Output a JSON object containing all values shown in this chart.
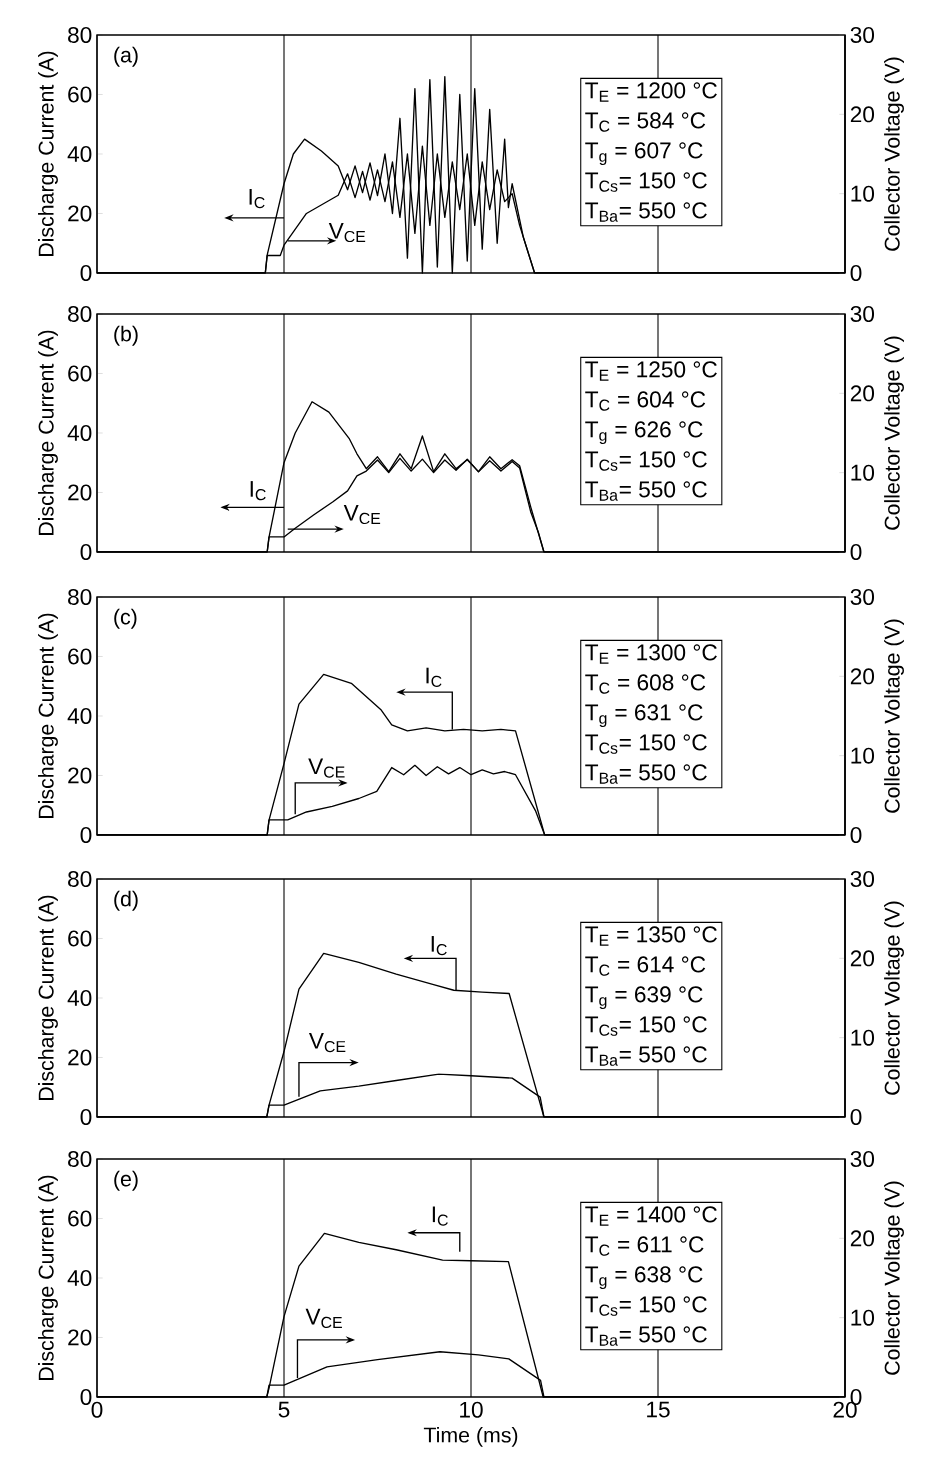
{
  "chart_data": [
    {
      "type": "line",
      "ylabel": "Discharge Current (A)",
      "y2label": "Collector Voltage (V)",
      "xlim": [
        0,
        20
      ],
      "xticks": [
        0,
        5,
        10,
        15,
        20
      ],
      "ylim": [
        0,
        80
      ],
      "yticks": [
        0,
        20,
        40,
        60,
        80
      ],
      "y2lim": [
        0,
        30
      ],
      "y2ticks": [
        0,
        10,
        20,
        30
      ],
      "grid": "x",
      "tick_labels": "y",
      "annotations": [
        "(a)",
        "T$_{E}$ = 1200 °C",
        "T$_{C}$ = 584 °C",
        "T$_{g}$ = 607 °C",
        "T$_{Cs}$= 150 °C",
        "T$_{Ba}$= 550 °C"
      ],
      "series": [
        {
          "name": "I$_{C}$",
          "color": "#000000",
          "x": [
            0,
            4.5,
            4.55,
            5.0,
            5.25,
            5.55,
            6.0,
            6.45,
            6.7,
            6.9,
            7.1,
            7.3,
            7.5,
            7.7,
            7.9,
            8.1,
            8.3,
            8.5,
            8.7,
            8.9,
            9.1,
            9.3,
            9.5,
            9.7,
            9.9,
            10.1,
            10.3,
            10.5,
            10.7,
            10.9,
            11.0,
            11.1,
            11.4,
            11.7,
            20
          ],
          "values": [
            0,
            0,
            6,
            30,
            40,
            45,
            41,
            36,
            28,
            36,
            27,
            37,
            26,
            40,
            20,
            52,
            5,
            62,
            0,
            65,
            2,
            66,
            0,
            60,
            4,
            62,
            8,
            55,
            10,
            45,
            22,
            30,
            12,
            0,
            0
          ]
        },
        {
          "name": "V$_{CE}$",
          "color": "#000000",
          "axis": "y2",
          "x": [
            0,
            4.5,
            4.55,
            4.9,
            5.0,
            5.6,
            6.45,
            6.7,
            6.9,
            7.1,
            7.3,
            7.5,
            7.7,
            7.9,
            8.1,
            8.3,
            8.5,
            8.7,
            8.9,
            9.1,
            9.3,
            9.5,
            9.7,
            9.9,
            10.1,
            10.3,
            10.5,
            10.7,
            10.9,
            11.1,
            11.3,
            11.7,
            20
          ],
          "values": [
            0,
            0,
            2.2,
            2.2,
            3.5,
            7.5,
            9.8,
            12.5,
            9.5,
            12.8,
            9.2,
            13,
            9,
            14,
            7,
            15,
            5,
            16,
            6,
            15,
            7,
            14,
            8,
            15,
            6,
            14,
            8,
            13,
            9,
            10,
            6,
            0,
            0
          ]
        }
      ]
    },
    {
      "type": "line",
      "ylabel": "Discharge Current (A)",
      "y2label": "Collector Voltage (V)",
      "xlim": [
        0,
        20
      ],
      "xticks": [
        0,
        5,
        10,
        15,
        20
      ],
      "ylim": [
        0,
        80
      ],
      "yticks": [
        0,
        20,
        40,
        60,
        80
      ],
      "y2lim": [
        0,
        30
      ],
      "y2ticks": [
        0,
        10,
        20,
        30
      ],
      "grid": "x",
      "tick_labels": "y",
      "annotations": [
        "(b)",
        "T$_{E}$ = 1250 °C",
        "T$_{C}$ = 604 °C",
        "T$_{g}$ = 626 °C",
        "T$_{Cs}$= 150 °C",
        "T$_{Ba}$= 550 °C"
      ],
      "series": [
        {
          "name": "I$_{C}$",
          "color": "#000000",
          "x": [
            0,
            4.55,
            4.6,
            5.0,
            5.3,
            5.75,
            6.2,
            6.75,
            6.95,
            7.2,
            7.5,
            7.8,
            8.1,
            8.4,
            8.7,
            9.0,
            9.3,
            9.6,
            9.9,
            10.2,
            10.5,
            10.8,
            11.1,
            11.3,
            11.6,
            11.95,
            20
          ],
          "values": [
            0,
            0,
            5,
            30,
            40,
            50.5,
            47,
            38,
            33,
            28,
            32,
            27,
            33,
            28,
            39,
            27,
            33,
            28,
            31,
            27,
            32,
            28,
            31,
            29,
            15,
            0,
            0
          ]
        },
        {
          "name": "V$_{CE}$",
          "color": "#000000",
          "axis": "y2",
          "x": [
            0,
            4.55,
            4.6,
            5.0,
            5.3,
            5.8,
            6.3,
            6.7,
            6.95,
            7.2,
            7.5,
            7.8,
            8.1,
            8.4,
            8.7,
            9.0,
            9.3,
            9.6,
            9.9,
            10.2,
            10.5,
            10.8,
            11.1,
            11.3,
            11.6,
            11.8,
            11.95,
            20
          ],
          "values": [
            0,
            0,
            1.9,
            1.9,
            3,
            4.7,
            6.3,
            7.7,
            9.6,
            10.2,
            11.6,
            10,
            11.8,
            10.2,
            11.7,
            10,
            11.6,
            10.3,
            11.7,
            10.1,
            11.5,
            10.2,
            11.4,
            10.6,
            5,
            2.5,
            0,
            0
          ]
        }
      ]
    },
    {
      "type": "line",
      "ylabel": "Discharge Current (A)",
      "y2label": "Collector Voltage (V)",
      "xlim": [
        0,
        20
      ],
      "xticks": [
        0,
        5,
        10,
        15,
        20
      ],
      "ylim": [
        0,
        80
      ],
      "yticks": [
        0,
        20,
        40,
        60,
        80
      ],
      "y2lim": [
        0,
        30
      ],
      "y2ticks": [
        0,
        10,
        20,
        30
      ],
      "grid": "x",
      "tick_labels": "y",
      "annotations": [
        "(c)",
        "T$_{E}$ = 1300 °C",
        "T$_{C}$ = 608 °C",
        "T$_{g}$ = 631 °C",
        "T$_{Cs}$= 150 °C",
        "T$_{Ba}$= 550 °C"
      ],
      "series": [
        {
          "name": "I$_{C}$",
          "color": "#000000",
          "x": [
            0,
            4.55,
            4.6,
            5.0,
            5.4,
            6.06,
            6.8,
            7.6,
            7.88,
            8.3,
            8.8,
            9.3,
            9.8,
            10.3,
            10.8,
            11.19,
            11.97,
            20
          ],
          "values": [
            0,
            0,
            5,
            24,
            44,
            54,
            51,
            42,
            37,
            35,
            36,
            35,
            35.5,
            35,
            35.5,
            35,
            0,
            0
          ]
        },
        {
          "name": "V$_{CE}$",
          "color": "#000000",
          "axis": "y2",
          "x": [
            0,
            4.55,
            4.6,
            5.1,
            5.6,
            6.29,
            7.0,
            7.48,
            7.88,
            8.2,
            8.5,
            8.8,
            9.1,
            9.4,
            9.7,
            10.0,
            10.3,
            10.6,
            10.9,
            11.19,
            11.73,
            11.97,
            20
          ],
          "values": [
            0,
            0,
            1.9,
            1.9,
            2.9,
            3.6,
            4.6,
            5.5,
            8.5,
            7.6,
            8.8,
            7.5,
            8.6,
            7.7,
            8.5,
            7.6,
            8.2,
            7.7,
            8.0,
            7.6,
            3,
            0,
            0
          ]
        }
      ]
    },
    {
      "type": "line",
      "ylabel": "Discharge Current (A)",
      "y2label": "Collector Voltage (V)",
      "xlim": [
        0,
        20
      ],
      "xticks": [
        0,
        5,
        10,
        15,
        20
      ],
      "ylim": [
        0,
        80
      ],
      "yticks": [
        0,
        20,
        40,
        60,
        80
      ],
      "y2lim": [
        0,
        30
      ],
      "y2ticks": [
        0,
        10,
        20,
        30
      ],
      "grid": "x",
      "tick_labels": "y",
      "annotations": [
        "(d)",
        "T$_{E}$ = 1350 °C",
        "T$_{C}$ = 614 °C",
        "T$_{g}$ = 639 °C",
        "T$_{Cs}$= 150 °C",
        "T$_{Ba}$= 550 °C"
      ],
      "series": [
        {
          "name": "I$_{C}$",
          "color": "#000000",
          "x": [
            0,
            4.54,
            4.6,
            5.0,
            5.4,
            6.06,
            7.0,
            8.0,
            9.0,
            9.54,
            10.3,
            11.02,
            11.95,
            20
          ],
          "values": [
            0,
            0,
            4,
            22,
            43,
            55,
            52,
            48,
            44.5,
            42.6,
            42,
            41.5,
            0,
            0
          ]
        },
        {
          "name": "V$_{CE}$",
          "color": "#000000",
          "axis": "y2",
          "x": [
            0,
            4.54,
            4.6,
            5.0,
            5.97,
            7.0,
            8.0,
            9.14,
            10.0,
            11.1,
            11.85,
            11.95,
            20
          ],
          "values": [
            0,
            0,
            1.5,
            1.5,
            3.3,
            3.9,
            4.6,
            5.4,
            5.2,
            4.9,
            2.5,
            0,
            0
          ]
        }
      ]
    },
    {
      "type": "line",
      "xlabel": "Time (ms)",
      "ylabel": "Discharge Current (A)",
      "y2label": "Collector Voltage (V)",
      "xlim": [
        0,
        20
      ],
      "xticks": [
        0,
        5,
        10,
        15,
        20
      ],
      "ylim": [
        0,
        80
      ],
      "yticks": [
        0,
        20,
        40,
        60,
        80
      ],
      "y2lim": [
        0,
        30
      ],
      "y2ticks": [
        0,
        10,
        20,
        30
      ],
      "grid": "x",
      "annotations": [
        "(e)",
        "T$_{E}$ = 1400 °C",
        "T$_{C}$ = 611 °C",
        "T$_{g}$ = 638 °C",
        "T$_{Cs}$= 150 °C",
        "T$_{Ba}$= 550 °C"
      ],
      "series": [
        {
          "name": "I$_{C}$",
          "color": "#000000",
          "x": [
            0,
            4.54,
            4.6,
            5.0,
            5.4,
            6.08,
            7.0,
            8.0,
            9.24,
            10.0,
            11.0,
            11.93,
            20
          ],
          "values": [
            0,
            0,
            3,
            27,
            44,
            55,
            52,
            49.5,
            46,
            45.8,
            45.5,
            0,
            0
          ]
        },
        {
          "name": "V$_{CE}$",
          "color": "#000000",
          "axis": "y2",
          "x": [
            0,
            4.54,
            4.6,
            5.0,
            6.15,
            7.5,
            9.17,
            10.2,
            11.01,
            11.86,
            11.95,
            20
          ],
          "values": [
            0,
            0,
            1.5,
            1.5,
            3.8,
            4.7,
            5.7,
            5.3,
            4.8,
            2.1,
            0,
            0
          ]
        }
      ]
    }
  ]
}
